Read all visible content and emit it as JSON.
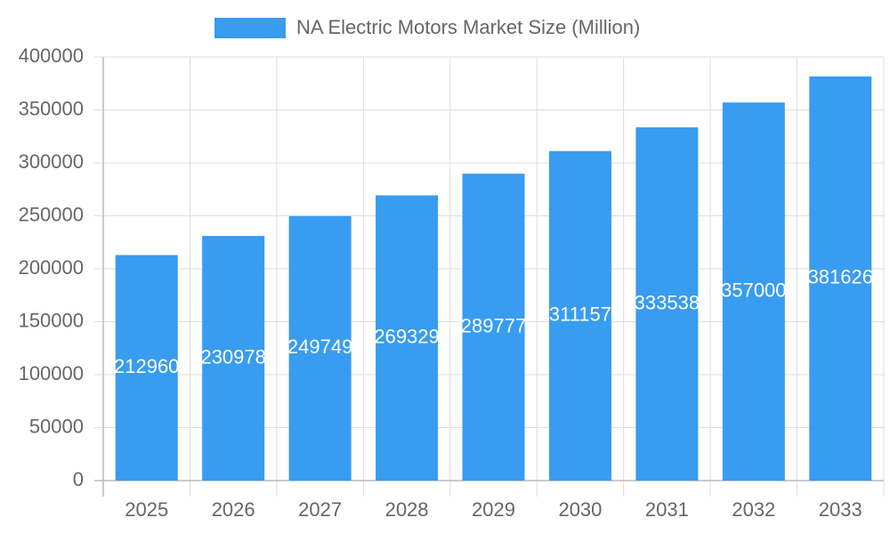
{
  "chart_data": {
    "type": "bar",
    "categories": [
      "2025",
      "2026",
      "2027",
      "2028",
      "2029",
      "2030",
      "2031",
      "2032",
      "2033"
    ],
    "series": [
      {
        "name": "NA Electric Motors Market Size (Million)",
        "color": "#389cf0",
        "values": [
          212960,
          230978,
          249749,
          269329,
          289777,
          311157,
          333538,
          357000,
          381626
        ]
      }
    ],
    "ylim": [
      0,
      400000
    ],
    "yticks": [
      0,
      50000,
      100000,
      150000,
      200000,
      250000,
      300000,
      350000,
      400000
    ],
    "grid": true,
    "legend": "top"
  }
}
